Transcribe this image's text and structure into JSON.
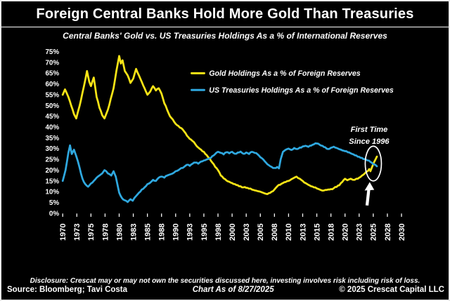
{
  "header": {
    "title": "Foreign Central Banks Hold More Gold Than Treasuries",
    "subtitle": "Central Banks' Gold vs. US Treasuries Holdings As a % of International Reserves"
  },
  "annotation": {
    "line1": "First Time",
    "line2": "Since 1996"
  },
  "footer": {
    "disclosure": "Disclosure: Crescat may or may not own the securities discussed here, investing involves risk including risk of loss.",
    "source": "Source: Bloomberg; Tavi Costa",
    "as_of": "Chart As of 8/27/2025",
    "copyright": "© 2025 Crescat Capital LLC"
  },
  "colors": {
    "background": "#000000",
    "text": "#FFFFFF",
    "gold": "#F8E416",
    "treasuries": "#2FA8DF",
    "frame": "#E9E9E9"
  },
  "chart_data": {
    "type": "line",
    "title": "Foreign Central Banks Hold More Gold Than Treasuries",
    "subtitle": "Central Banks' Gold vs. US Treasuries Holdings As a % of International Reserves",
    "xlabel": "",
    "ylabel": "% of International Reserves",
    "xlim": [
      1970,
      2030
    ],
    "ylim": [
      0,
      75
    ],
    "grid": false,
    "legend_position": "top-center",
    "x_ticks": [
      "1970",
      "1973",
      "1975",
      "1978",
      "1980",
      "1983",
      "1985",
      "1988",
      "1990",
      "1993",
      "1995",
      "1998",
      "2000",
      "2003",
      "2005",
      "2008",
      "2010",
      "2013",
      "2015",
      "2018",
      "2020",
      "2023",
      "2025",
      "2028",
      "2030"
    ],
    "y_ticks": [
      "75%",
      "70%",
      "65%",
      "60%",
      "55%",
      "50%",
      "45%",
      "40%",
      "35%",
      "30%",
      "25%",
      "20%",
      "15%",
      "10%",
      "5%",
      "0%"
    ],
    "series": [
      {
        "name": "Gold Holdings As a % of Foreign Reserves",
        "color": "#F8E416",
        "points": [
          [
            1970,
            55
          ],
          [
            1970.4,
            57.5
          ],
          [
            1971,
            54
          ],
          [
            1971.5,
            50
          ],
          [
            1972,
            46
          ],
          [
            1972.4,
            44
          ],
          [
            1973,
            50
          ],
          [
            1973.5,
            56
          ],
          [
            1974,
            62
          ],
          [
            1974.3,
            66
          ],
          [
            1974.7,
            61
          ],
          [
            1975,
            59
          ],
          [
            1975.5,
            63
          ],
          [
            1976,
            54
          ],
          [
            1976.5,
            49
          ],
          [
            1977,
            45.5
          ],
          [
            1977.4,
            44
          ],
          [
            1978,
            48
          ],
          [
            1978.5,
            53
          ],
          [
            1979,
            58
          ],
          [
            1979.5,
            66
          ],
          [
            1980,
            73
          ],
          [
            1980.3,
            69.5
          ],
          [
            1980.6,
            71
          ],
          [
            1981,
            66
          ],
          [
            1981.5,
            64
          ],
          [
            1982,
            60.5
          ],
          [
            1982.5,
            62.5
          ],
          [
            1983,
            67
          ],
          [
            1983.5,
            64
          ],
          [
            1984,
            61
          ],
          [
            1984.5,
            58
          ],
          [
            1985,
            55
          ],
          [
            1985.5,
            56.5
          ],
          [
            1986,
            59
          ],
          [
            1986.5,
            57
          ],
          [
            1987,
            58
          ],
          [
            1987.5,
            55.5
          ],
          [
            1988,
            51
          ],
          [
            1988.5,
            48
          ],
          [
            1989,
            45
          ],
          [
            1989.5,
            43.5
          ],
          [
            1990,
            41.5
          ],
          [
            1990.5,
            40.5
          ],
          [
            1991,
            39.5
          ],
          [
            1991.5,
            38
          ],
          [
            1992,
            36
          ],
          [
            1992.5,
            34.5
          ],
          [
            1993,
            33.5
          ],
          [
            1993.5,
            32
          ],
          [
            1994,
            30.5
          ],
          [
            1994.5,
            29.5
          ],
          [
            1995,
            28.5
          ],
          [
            1995.5,
            27
          ],
          [
            1996,
            25.5
          ],
          [
            1996.5,
            23.5
          ],
          [
            1997,
            21.5
          ],
          [
            1997.5,
            20
          ],
          [
            1998,
            17.5
          ],
          [
            1998.5,
            16.2
          ],
          [
            1999,
            15.2
          ],
          [
            1999.5,
            14.6
          ],
          [
            2000,
            14
          ],
          [
            2000.5,
            13.5
          ],
          [
            2001,
            13
          ],
          [
            2001.5,
            12.5
          ],
          [
            2002,
            12
          ],
          [
            2002.5,
            11.8
          ],
          [
            2003,
            11.4
          ],
          [
            2003.5,
            11
          ],
          [
            2004,
            10.6
          ],
          [
            2004.5,
            10.3
          ],
          [
            2005,
            10
          ],
          [
            2005.5,
            9.5
          ],
          [
            2006,
            9
          ],
          [
            2006.5,
            9.3
          ],
          [
            2007,
            10
          ],
          [
            2007.5,
            11
          ],
          [
            2008,
            12.5
          ],
          [
            2008.5,
            13.2
          ],
          [
            2009,
            14
          ],
          [
            2009.5,
            14.5
          ],
          [
            2010,
            15
          ],
          [
            2010.5,
            15.8
          ],
          [
            2011,
            16.5
          ],
          [
            2011.4,
            17
          ],
          [
            2012,
            16
          ],
          [
            2012.5,
            15
          ],
          [
            2013,
            14
          ],
          [
            2013.5,
            13.2
          ],
          [
            2014,
            12.5
          ],
          [
            2014.5,
            12
          ],
          [
            2015,
            11.5
          ],
          [
            2015.5,
            11
          ],
          [
            2016,
            10.5
          ],
          [
            2016.5,
            10.8
          ],
          [
            2017,
            11
          ],
          [
            2017.5,
            11.2
          ],
          [
            2018,
            11.6
          ],
          [
            2018.5,
            12.2
          ],
          [
            2019,
            13
          ],
          [
            2019.5,
            14.5
          ],
          [
            2020,
            16
          ],
          [
            2020.4,
            15.3
          ],
          [
            2021,
            16
          ],
          [
            2021.4,
            15.5
          ],
          [
            2022,
            16
          ],
          [
            2022.5,
            16.5
          ],
          [
            2023,
            17.5
          ],
          [
            2023.5,
            18.5
          ],
          [
            2024,
            19.5
          ],
          [
            2024.3,
            20.5
          ],
          [
            2024.5,
            19.5
          ],
          [
            2024.8,
            21.5
          ],
          [
            2025.1,
            23.5
          ],
          [
            2025.4,
            25
          ],
          [
            2025.65,
            26.3
          ]
        ]
      },
      {
        "name": "US Treasuries Holdings As a % of Foreign Reserves",
        "color": "#2FA8DF",
        "points": [
          [
            1970,
            15
          ],
          [
            1970.5,
            20
          ],
          [
            1971,
            28
          ],
          [
            1971.3,
            31.5
          ],
          [
            1971.6,
            27.5
          ],
          [
            1972,
            29.5
          ],
          [
            1972.4,
            26.5
          ],
          [
            1973,
            21
          ],
          [
            1973.5,
            16
          ],
          [
            1974,
            13.5
          ],
          [
            1974.5,
            12.3
          ],
          [
            1975,
            13.8
          ],
          [
            1975.5,
            15
          ],
          [
            1976,
            16.5
          ],
          [
            1976.5,
            17.5
          ],
          [
            1977,
            18.5
          ],
          [
            1977.4,
            20
          ],
          [
            1978,
            18.5
          ],
          [
            1978.6,
            17.5
          ],
          [
            1979,
            19.5
          ],
          [
            1979.4,
            17
          ],
          [
            1979.8,
            12
          ],
          [
            1980,
            9.5
          ],
          [
            1980.5,
            7
          ],
          [
            1981,
            6
          ],
          [
            1981.5,
            5.2
          ],
          [
            1982,
            6.5
          ],
          [
            1982.4,
            5.8
          ],
          [
            1983,
            8
          ],
          [
            1983.5,
            9.5
          ],
          [
            1984,
            11
          ],
          [
            1984.5,
            12
          ],
          [
            1985,
            13.5
          ],
          [
            1985.5,
            14.2
          ],
          [
            1986,
            15.5
          ],
          [
            1986.5,
            15
          ],
          [
            1987,
            16.5
          ],
          [
            1987.5,
            17
          ],
          [
            1988,
            16.5
          ],
          [
            1988.5,
            17.5
          ],
          [
            1989,
            18
          ],
          [
            1989.5,
            18.5
          ],
          [
            1990,
            19.5
          ],
          [
            1990.5,
            20
          ],
          [
            1991,
            21
          ],
          [
            1991.5,
            21.5
          ],
          [
            1992,
            22.5
          ],
          [
            1992.5,
            22
          ],
          [
            1993,
            23
          ],
          [
            1993.5,
            23.5
          ],
          [
            1994,
            23
          ],
          [
            1994.5,
            24
          ],
          [
            1995,
            24.5
          ],
          [
            1995.5,
            25
          ],
          [
            1996,
            25.5
          ],
          [
            1996.5,
            26.5
          ],
          [
            1997,
            27.5
          ],
          [
            1997.5,
            28.5
          ],
          [
            1998,
            28
          ],
          [
            1998.5,
            27.3
          ],
          [
            1999,
            28.3
          ],
          [
            1999.5,
            27.8
          ],
          [
            2000,
            28.5
          ],
          [
            2000.5,
            27.6
          ],
          [
            2001,
            28.2
          ],
          [
            2001.5,
            28.6
          ],
          [
            2002,
            27.6
          ],
          [
            2002.5,
            28.2
          ],
          [
            2003,
            27.5
          ],
          [
            2003.5,
            28.5
          ],
          [
            2004,
            28
          ],
          [
            2004.5,
            27.4
          ],
          [
            2005,
            26
          ],
          [
            2005.5,
            25
          ],
          [
            2006,
            23.5
          ],
          [
            2006.5,
            22.3
          ],
          [
            2007,
            21.5
          ],
          [
            2007.5,
            21
          ],
          [
            2008,
            21.5
          ],
          [
            2008.3,
            20.8
          ],
          [
            2008.6,
            25
          ],
          [
            2009,
            28.5
          ],
          [
            2009.5,
            29.5
          ],
          [
            2010,
            30
          ],
          [
            2010.5,
            29.4
          ],
          [
            2011,
            30.3
          ],
          [
            2011.5,
            29.8
          ],
          [
            2012,
            30.5
          ],
          [
            2012.5,
            31
          ],
          [
            2013,
            31.3
          ],
          [
            2013.5,
            30.8
          ],
          [
            2014,
            31.4
          ],
          [
            2014.5,
            32
          ],
          [
            2015,
            32.4
          ],
          [
            2015.5,
            31.8
          ],
          [
            2016,
            31.3
          ],
          [
            2016.5,
            30.6
          ],
          [
            2017,
            29.8
          ],
          [
            2017.5,
            30.4
          ],
          [
            2018,
            30.9
          ],
          [
            2018.5,
            30.3
          ],
          [
            2019,
            29.7
          ],
          [
            2019.5,
            29.2
          ],
          [
            2020,
            28.8
          ],
          [
            2020.5,
            28.3
          ],
          [
            2021,
            27.8
          ],
          [
            2021.5,
            27.3
          ],
          [
            2022,
            26.8
          ],
          [
            2022.5,
            26.2
          ],
          [
            2023,
            25.7
          ],
          [
            2023.5,
            25.1
          ],
          [
            2024,
            24.5
          ],
          [
            2024.5,
            23.8
          ],
          [
            2025,
            22.8
          ],
          [
            2025.65,
            21.8
          ]
        ]
      }
    ]
  }
}
